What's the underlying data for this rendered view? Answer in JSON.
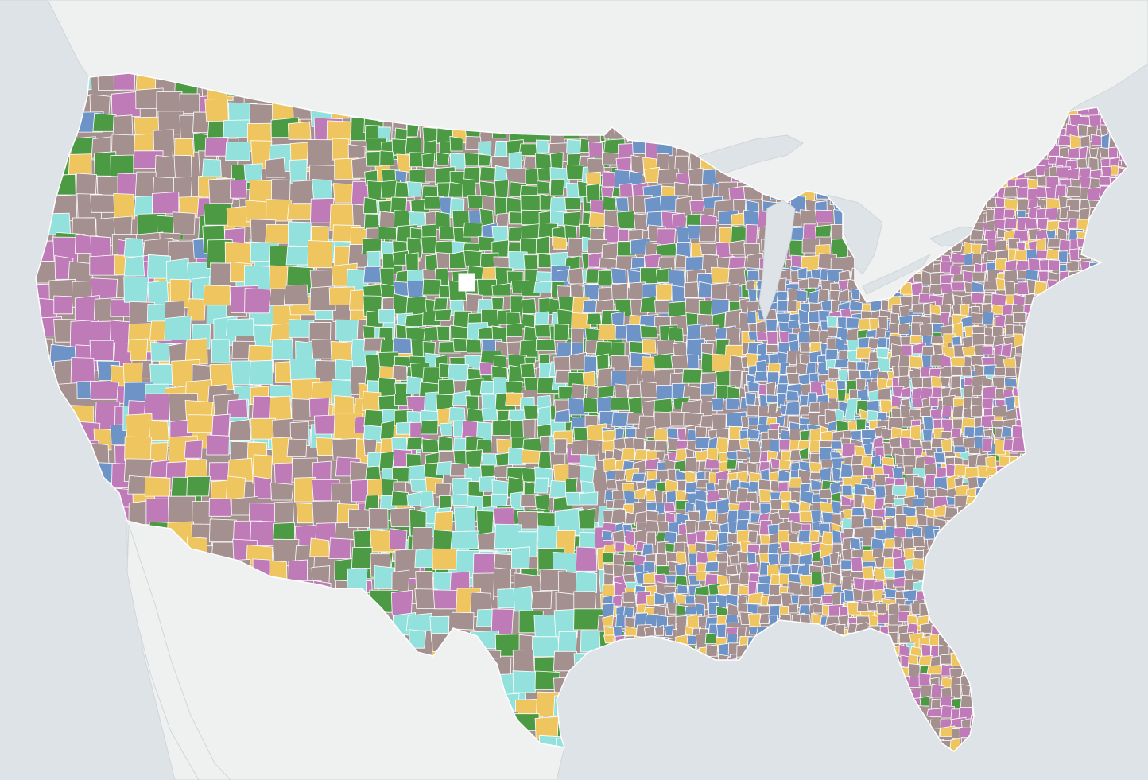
{
  "map": {
    "type": "choropleth",
    "region": "contiguous-united-states",
    "unit": "county",
    "legend_visible": false,
    "labels_visible": false,
    "colors": {
      "water": "#dde3e6",
      "land": "#eff1f1",
      "border": "#ffffff",
      "border_dark": "#cfd6d9",
      "category_gray": "#a59090",
      "category_purple": "#bf7ab8",
      "category_yellow": "#eec55e",
      "category_green": "#4d9a45",
      "category_cyan": "#93e1dc",
      "category_blue": "#6e93c6",
      "category_white": "#ffffff"
    },
    "category_keys": [
      "gray",
      "purple",
      "yellow",
      "green",
      "cyan",
      "blue"
    ],
    "region_fills": [
      {
        "key": "pacific-northwest",
        "mix": {
          "gray": 0.45,
          "purple": 0.2,
          "yellow": 0.15,
          "green": 0.12,
          "cyan": 0.05,
          "blue": 0.03
        }
      },
      {
        "key": "california-coast",
        "mix": {
          "purple": 0.5,
          "gray": 0.3,
          "yellow": 0.1,
          "blue": 0.1
        }
      },
      {
        "key": "great-basin",
        "mix": {
          "cyan": 0.55,
          "gray": 0.2,
          "yellow": 0.2,
          "blue": 0.05
        }
      },
      {
        "key": "northern-rockies",
        "mix": {
          "yellow": 0.35,
          "gray": 0.3,
          "green": 0.15,
          "cyan": 0.1,
          "purple": 0.1
        }
      },
      {
        "key": "southwest-desert",
        "mix": {
          "gray": 0.35,
          "purple": 0.3,
          "yellow": 0.3,
          "green": 0.05
        }
      },
      {
        "key": "great-plains-north",
        "mix": {
          "green": 0.75,
          "cyan": 0.1,
          "gray": 0.08,
          "blue": 0.05,
          "yellow": 0.02
        }
      },
      {
        "key": "great-plains-south",
        "mix": {
          "green": 0.45,
          "cyan": 0.35,
          "gray": 0.12,
          "yellow": 0.05,
          "purple": 0.03
        }
      },
      {
        "key": "texas",
        "mix": {
          "cyan": 0.35,
          "gray": 0.3,
          "green": 0.15,
          "yellow": 0.1,
          "purple": 0.1
        }
      },
      {
        "key": "upper-midwest",
        "mix": {
          "gray": 0.35,
          "purple": 0.25,
          "blue": 0.25,
          "green": 0.1,
          "yellow": 0.05
        }
      },
      {
        "key": "corn-belt",
        "mix": {
          "gray": 0.4,
          "green": 0.3,
          "blue": 0.2,
          "yellow": 0.1
        }
      },
      {
        "key": "ohio-valley",
        "mix": {
          "blue": 0.5,
          "gray": 0.35,
          "yellow": 0.1,
          "purple": 0.05
        }
      },
      {
        "key": "appalachia",
        "mix": {
          "gray": 0.35,
          "cyan": 0.2,
          "blue": 0.2,
          "yellow": 0.15,
          "green": 0.1
        }
      },
      {
        "key": "deep-south",
        "mix": {
          "gray": 0.35,
          "blue": 0.3,
          "yellow": 0.2,
          "purple": 0.1,
          "green": 0.05
        }
      },
      {
        "key": "southeast-coast",
        "mix": {
          "gray": 0.4,
          "yellow": 0.25,
          "blue": 0.2,
          "purple": 0.1,
          "cyan": 0.05
        }
      },
      {
        "key": "florida",
        "mix": {
          "gray": 0.45,
          "purple": 0.3,
          "yellow": 0.2,
          "green": 0.05
        }
      },
      {
        "key": "northeast",
        "mix": {
          "gray": 0.5,
          "purple": 0.25,
          "yellow": 0.15,
          "blue": 0.1
        }
      },
      {
        "key": "new-england",
        "mix": {
          "purple": 0.45,
          "gray": 0.3,
          "yellow": 0.15,
          "blue": 0.1
        }
      }
    ]
  }
}
